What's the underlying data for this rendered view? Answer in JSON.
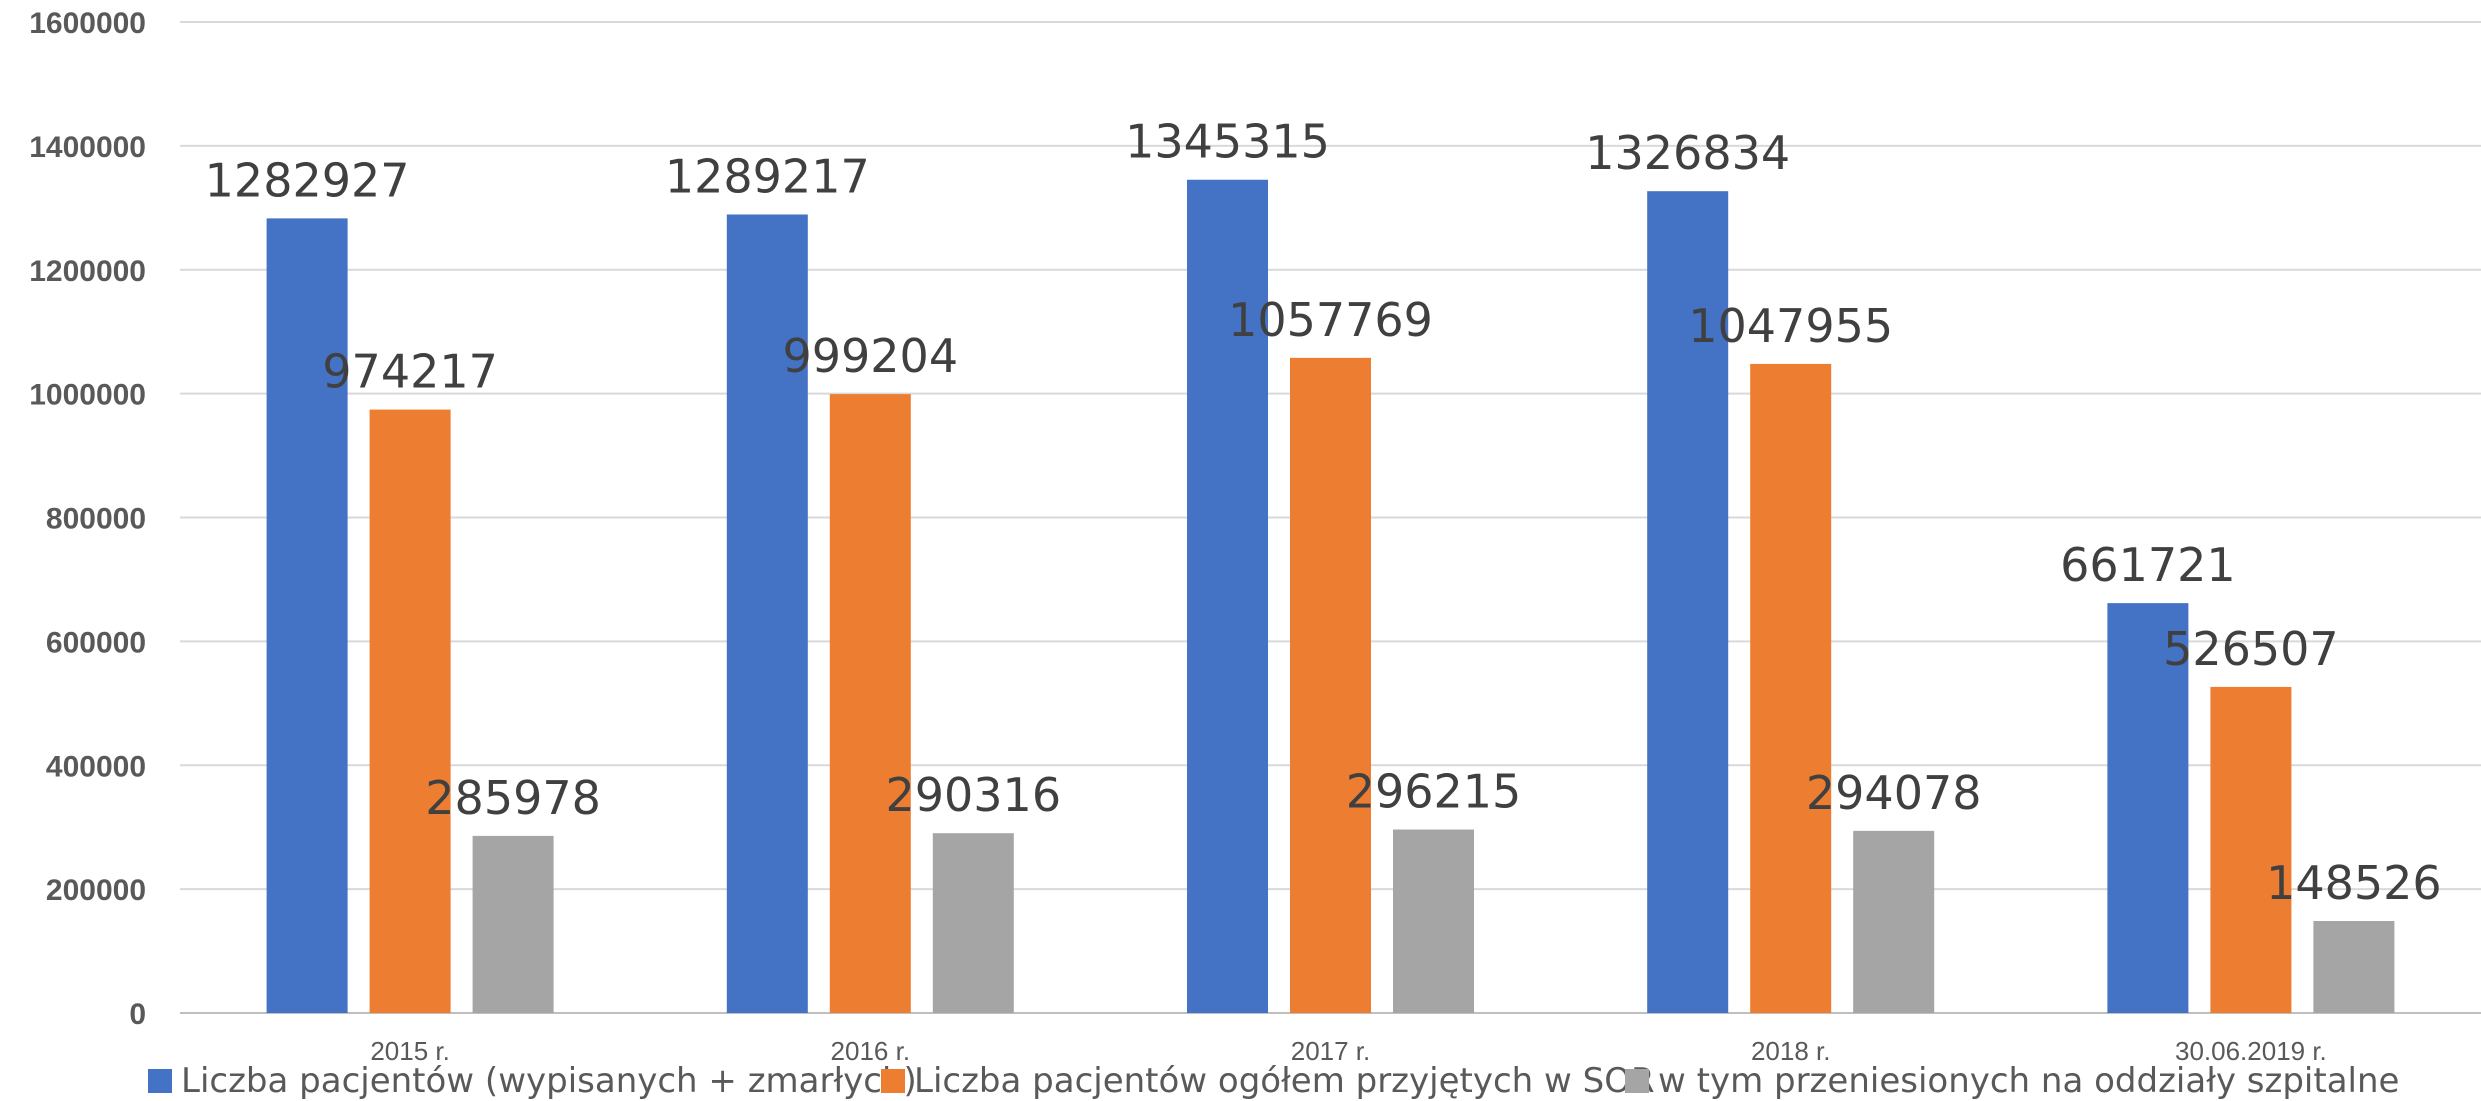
{
  "chart_data": {
    "type": "bar",
    "categories": [
      "2015 r.",
      "2016 r.",
      "2017 r.",
      "2018 r.",
      "30.06.2019 r."
    ],
    "series": [
      {
        "name": "Liczba pacjentów (wypisanych + zmarłych)",
        "color": "#4472C4",
        "values": [
          1282927,
          1289217,
          1345315,
          1326834,
          661721
        ]
      },
      {
        "name": "Liczba pacjentów ogółem przyjętych w SOR",
        "color": "#ED7D31",
        "values": [
          974217,
          999204,
          1057769,
          1047955,
          526507
        ]
      },
      {
        "name": "w tym przeniesionych na oddziały szpitalne",
        "color": "#A5A5A5",
        "values": [
          285978,
          290316,
          296215,
          294078,
          148526
        ]
      }
    ],
    "y_ticks": [
      0,
      200000,
      400000,
      600000,
      800000,
      1000000,
      1200000,
      1400000,
      1600000
    ],
    "ylim": [
      0,
      1600000
    ],
    "grid": true,
    "legend_position": "bottom",
    "title": "",
    "xlabel": "",
    "ylabel": ""
  }
}
